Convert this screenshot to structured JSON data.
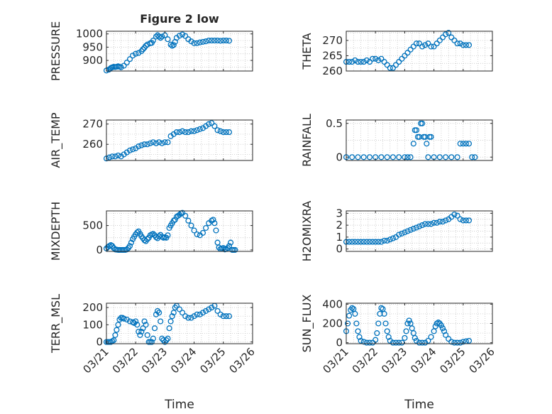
{
  "chart_data": [
    {
      "id": "p1",
      "type": "scatter",
      "title": "Figure 2 low",
      "ylabel": "PRESSURE",
      "ylim": [
        860,
        1010
      ],
      "yticks": [
        900,
        950,
        1000
      ],
      "xticks_shown": false,
      "series": [
        {
          "x": [
            0,
            0.08,
            0.12,
            0.16,
            0.2,
            0.25,
            0.3,
            0.35,
            0.4,
            0.45,
            0.5,
            0.6,
            0.7,
            0.8,
            0.9,
            1.0,
            1.1,
            1.2,
            1.25,
            1.3,
            1.35,
            1.4,
            1.5,
            1.55,
            1.6,
            1.7,
            1.75,
            1.8,
            1.85,
            1.9,
            2.0,
            2.1,
            2.2,
            2.25,
            2.3,
            2.35,
            2.4,
            2.5,
            2.6,
            2.7,
            2.8,
            2.9,
            3.0,
            3.1,
            3.2,
            3.3,
            3.4,
            3.5,
            3.6,
            3.7,
            3.8,
            3.9,
            4.0,
            4.1,
            4.2
          ],
          "y": [
            862,
            865,
            868,
            872,
            874,
            876,
            875,
            876,
            878,
            876,
            874,
            880,
            892,
            905,
            918,
            925,
            928,
            935,
            942,
            948,
            955,
            960,
            965,
            966,
            975,
            990,
            995,
            990,
            985,
            990,
            995,
            980,
            960,
            955,
            958,
            970,
            985,
            993,
            998,
            992,
            980,
            972,
            965,
            965,
            968,
            970,
            972,
            975,
            975,
            975,
            975,
            974,
            975,
            975,
            974
          ]
        }
      ]
    },
    {
      "id": "p2",
      "type": "scatter",
      "ylabel": "THETA",
      "ylim": [
        260,
        273
      ],
      "yticks": [
        260,
        265,
        270
      ],
      "xticks_shown": false,
      "series": [
        {
          "x": [
            0,
            0.1,
            0.2,
            0.3,
            0.4,
            0.5,
            0.6,
            0.7,
            0.8,
            0.9,
            1.0,
            1.1,
            1.2,
            1.3,
            1.4,
            1.5,
            1.6,
            1.7,
            1.8,
            1.9,
            2.0,
            2.1,
            2.2,
            2.3,
            2.4,
            2.5,
            2.6,
            2.7,
            2.8,
            2.9,
            3.0,
            3.1,
            3.2,
            3.3,
            3.4,
            3.5,
            3.6,
            3.7,
            3.8,
            3.9,
            4.0,
            4.1,
            4.2
          ],
          "y": [
            263,
            263,
            263,
            263.5,
            263,
            263,
            263,
            263.5,
            263,
            264,
            264,
            263.5,
            264,
            263,
            262,
            261,
            261,
            262,
            263,
            264,
            265,
            266,
            267,
            268,
            269,
            269,
            268,
            268.5,
            269,
            268,
            268,
            269,
            270,
            271,
            272,
            272.5,
            271,
            270,
            269,
            269,
            268.5,
            268.5,
            268.5
          ]
        }
      ]
    },
    {
      "id": "p3",
      "type": "scatter",
      "ylabel": "AIR_TEMP",
      "ylim": [
        252,
        272
      ],
      "yticks": [
        260,
        270
      ],
      "xticks_shown": false,
      "series": [
        {
          "x": [
            0,
            0.1,
            0.2,
            0.3,
            0.4,
            0.5,
            0.6,
            0.7,
            0.8,
            0.9,
            1.0,
            1.1,
            1.2,
            1.3,
            1.4,
            1.5,
            1.6,
            1.7,
            1.8,
            1.9,
            2.0,
            2.1,
            2.2,
            2.3,
            2.4,
            2.5,
            2.6,
            2.7,
            2.8,
            2.9,
            3.0,
            3.1,
            3.2,
            3.3,
            3.4,
            3.5,
            3.6,
            3.7,
            3.8,
            3.9,
            4.0,
            4.1,
            4.2
          ],
          "y": [
            253,
            253.5,
            254,
            254,
            254.5,
            254,
            255,
            256,
            257,
            257.5,
            258,
            259,
            259.5,
            260,
            260,
            260.5,
            261,
            260.5,
            261,
            260.5,
            261,
            261,
            264,
            265,
            266,
            266,
            266.5,
            266,
            266,
            266.5,
            266.5,
            267,
            267.5,
            268,
            269,
            270,
            270.5,
            269,
            267,
            266.5,
            266,
            266,
            266
          ]
        }
      ]
    },
    {
      "id": "p4",
      "type": "scatter",
      "ylabel": "RAINFALL",
      "ylim": [
        -0.05,
        0.55
      ],
      "yticks": [
        0,
        0.5
      ],
      "xticks_shown": false,
      "series": [
        {
          "x": [
            0,
            0.2,
            0.4,
            0.6,
            0.8,
            1.0,
            1.2,
            1.4,
            1.6,
            1.8,
            2.0,
            2.1,
            2.2,
            2.3,
            2.35,
            2.4,
            2.45,
            2.5,
            2.55,
            2.6,
            2.65,
            2.7,
            2.75,
            2.8,
            2.85,
            2.9,
            3.0,
            3.2,
            3.4,
            3.6,
            3.8,
            3.9,
            4.0,
            4.1,
            4.2,
            4.3,
            4.4
          ],
          "y": [
            0,
            0,
            0,
            0,
            0,
            0,
            0,
            0,
            0,
            0,
            0,
            0,
            0,
            0.2,
            0.4,
            0.4,
            0.3,
            0.3,
            0.5,
            0.5,
            0.3,
            0.3,
            0.2,
            0,
            0.3,
            0.3,
            0,
            0,
            0,
            0,
            0,
            0.2,
            0.2,
            0.2,
            0.2,
            0,
            0
          ]
        }
      ]
    },
    {
      "id": "p5",
      "type": "scatter",
      "ylabel": "MIXDEPTH",
      "ylim": [
        -30,
        800
      ],
      "yticks": [
        0,
        500
      ],
      "xticks_shown": false,
      "series": [
        {
          "x": [
            0,
            0.05,
            0.1,
            0.15,
            0.2,
            0.25,
            0.3,
            0.35,
            0.4,
            0.45,
            0.5,
            0.55,
            0.6,
            0.65,
            0.7,
            0.75,
            0.8,
            0.85,
            0.9,
            0.95,
            1.0,
            1.05,
            1.1,
            1.15,
            1.2,
            1.25,
            1.3,
            1.35,
            1.4,
            1.45,
            1.5,
            1.55,
            1.6,
            1.65,
            1.7,
            1.75,
            1.8,
            1.85,
            1.9,
            1.95,
            2.0,
            2.05,
            2.1,
            2.15,
            2.2,
            2.25,
            2.3,
            2.35,
            2.4,
            2.45,
            2.5,
            2.55,
            2.6,
            2.7,
            2.8,
            2.9,
            3.0,
            3.1,
            3.2,
            3.3,
            3.4,
            3.5,
            3.6,
            3.65,
            3.7,
            3.75,
            3.8,
            3.85,
            3.9,
            3.95,
            4.0,
            4.05,
            4.1,
            4.15,
            4.2,
            4.25,
            4.3,
            4.35,
            4.4
          ],
          "y": [
            30,
            60,
            80,
            100,
            80,
            40,
            10,
            5,
            0,
            0,
            0,
            0,
            0,
            0,
            10,
            40,
            80,
            150,
            220,
            270,
            320,
            360,
            380,
            330,
            280,
            240,
            200,
            180,
            220,
            250,
            300,
            320,
            330,
            300,
            260,
            240,
            280,
            310,
            270,
            250,
            260,
            250,
            300,
            450,
            500,
            550,
            600,
            620,
            680,
            700,
            720,
            750,
            760,
            700,
            600,
            500,
            400,
            320,
            300,
            350,
            450,
            550,
            600,
            620,
            550,
            400,
            150,
            50,
            20,
            30,
            40,
            10,
            20,
            40,
            80,
            150,
            0,
            0,
            0
          ]
        }
      ]
    },
    {
      "id": "p6",
      "type": "scatter",
      "ylabel": "H2OMIXRA",
      "ylim": [
        -0.2,
        3.2
      ],
      "yticks": [
        0,
        1,
        2,
        3
      ],
      "xticks_shown": false,
      "series": [
        {
          "x": [
            0,
            0.1,
            0.2,
            0.3,
            0.4,
            0.5,
            0.6,
            0.7,
            0.8,
            0.9,
            1.0,
            1.1,
            1.2,
            1.3,
            1.4,
            1.5,
            1.6,
            1.7,
            1.8,
            1.9,
            2.0,
            2.1,
            2.2,
            2.3,
            2.4,
            2.5,
            2.6,
            2.7,
            2.8,
            2.9,
            3.0,
            3.1,
            3.2,
            3.3,
            3.4,
            3.5,
            3.6,
            3.7,
            3.8,
            3.9,
            4.0,
            4.1,
            4.2
          ],
          "y": [
            0.6,
            0.6,
            0.6,
            0.6,
            0.6,
            0.6,
            0.6,
            0.6,
            0.6,
            0.6,
            0.6,
            0.6,
            0.6,
            0.7,
            0.7,
            0.8,
            0.9,
            1.0,
            1.2,
            1.3,
            1.4,
            1.5,
            1.6,
            1.7,
            1.8,
            1.9,
            2.0,
            2.1,
            2.1,
            2.1,
            2.2,
            2.2,
            2.3,
            2.3,
            2.4,
            2.5,
            2.7,
            2.9,
            2.8,
            2.5,
            2.4,
            2.4,
            2.4
          ]
        }
      ]
    },
    {
      "id": "p7",
      "type": "scatter",
      "ylabel": "TERR_MSL",
      "ylim": [
        -10,
        225
      ],
      "yticks": [
        0,
        100,
        200
      ],
      "xticks_shown": true,
      "series": [
        {
          "x": [
            0,
            0.05,
            0.1,
            0.15,
            0.2,
            0.25,
            0.3,
            0.35,
            0.4,
            0.45,
            0.5,
            0.55,
            0.6,
            0.7,
            0.8,
            0.9,
            0.95,
            1.0,
            1.05,
            1.1,
            1.15,
            1.2,
            1.25,
            1.3,
            1.35,
            1.4,
            1.45,
            1.5,
            1.55,
            1.6,
            1.65,
            1.7,
            1.75,
            1.8,
            1.85,
            1.9,
            1.95,
            2.0,
            2.05,
            2.1,
            2.15,
            2.2,
            2.25,
            2.3,
            2.35,
            2.4,
            2.5,
            2.6,
            2.7,
            2.8,
            2.9,
            3.0,
            3.1,
            3.2,
            3.3,
            3.4,
            3.5,
            3.6,
            3.7,
            3.8,
            3.9,
            4.0,
            4.1,
            4.2
          ],
          "y": [
            0,
            0,
            0,
            0,
            5,
            10,
            40,
            70,
            100,
            130,
            140,
            140,
            135,
            130,
            120,
            115,
            110,
            120,
            100,
            60,
            40,
            60,
            80,
            120,
            100,
            40,
            0,
            0,
            0,
            20,
            80,
            160,
            180,
            170,
            120,
            20,
            10,
            0,
            10,
            20,
            80,
            120,
            150,
            170,
            200,
            210,
            190,
            170,
            150,
            140,
            140,
            150,
            160,
            160,
            170,
            180,
            190,
            200,
            210,
            180,
            160,
            150,
            150,
            150
          ]
        }
      ]
    },
    {
      "id": "p8",
      "type": "scatter",
      "ylabel": "SUN_FLUX",
      "ylim": [
        -10,
        410
      ],
      "yticks": [
        0,
        200,
        400
      ],
      "xticks_shown": true,
      "series": [
        {
          "x": [
            0,
            0.05,
            0.1,
            0.15,
            0.2,
            0.25,
            0.3,
            0.35,
            0.4,
            0.45,
            0.5,
            0.6,
            0.7,
            0.8,
            0.9,
            1.0,
            1.05,
            1.1,
            1.15,
            1.2,
            1.25,
            1.3,
            1.35,
            1.4,
            1.45,
            1.5,
            1.6,
            1.7,
            1.8,
            1.9,
            2.0,
            2.05,
            2.1,
            2.15,
            2.2,
            2.25,
            2.3,
            2.35,
            2.4,
            2.5,
            2.6,
            2.7,
            2.8,
            2.9,
            3.0,
            3.05,
            3.1,
            3.15,
            3.2,
            3.25,
            3.3,
            3.35,
            3.4,
            3.5,
            3.6,
            3.7,
            3.8,
            3.9,
            4.0,
            4.1,
            4.2
          ],
          "y": [
            120,
            200,
            280,
            340,
            360,
            350,
            300,
            200,
            120,
            60,
            20,
            10,
            0,
            0,
            0,
            30,
            100,
            200,
            300,
            360,
            350,
            300,
            200,
            120,
            60,
            20,
            0,
            0,
            0,
            0,
            50,
            120,
            200,
            230,
            200,
            150,
            100,
            50,
            20,
            0,
            0,
            0,
            20,
            60,
            120,
            170,
            200,
            210,
            200,
            180,
            150,
            120,
            80,
            40,
            10,
            0,
            0,
            0,
            10,
            15,
            20
          ]
        }
      ]
    }
  ],
  "xaxis": {
    "ticks": [
      0,
      1,
      2,
      3,
      4,
      5
    ],
    "tick_labels": [
      "03/21",
      "03/22",
      "03/23",
      "03/24",
      "03/25",
      "03/26"
    ],
    "xlim": [
      0,
      5
    ],
    "label": "Time"
  },
  "grid": true,
  "colors": {
    "marker": "#0072BD",
    "axis": "#262626",
    "grid": "#bdbdbd"
  }
}
